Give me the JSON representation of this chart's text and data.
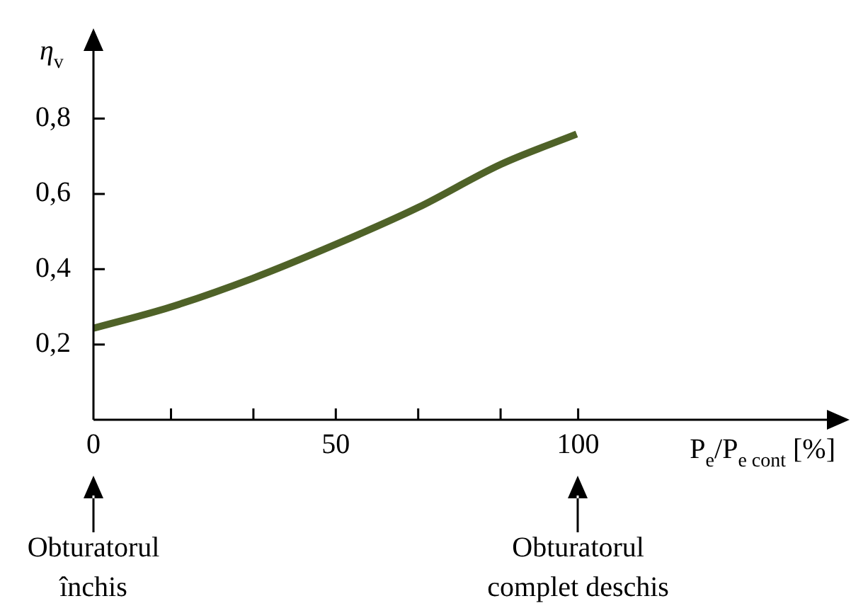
{
  "chart_data": {
    "type": "line",
    "xlabel": "P$_{e}$/P$_{e cont}$ [%]",
    "ylabel": "η$_{v}$",
    "x": [
      0,
      15.8,
      32.9,
      50,
      67,
      84.1,
      99.7
    ],
    "series": [
      {
        "color": "#4f6228",
        "values": [
          0.243,
          0.299,
          0.376,
          0.466,
          0.564,
          0.679,
          0.759
        ]
      }
    ],
    "xlim": [
      0,
      156
    ],
    "ylim": [
      0,
      1.04
    ],
    "xticks": [
      0,
      {
        "value": 16,
        "label": null
      },
      {
        "value": 33,
        "label": null
      },
      50,
      {
        "value": 67,
        "label": null
      },
      {
        "value": 84,
        "label": null
      },
      100
    ],
    "yticks": [
      {
        "value": 0.2,
        "label": "0,2"
      },
      {
        "value": 0.4,
        "label": "0,4"
      },
      {
        "value": 0.6,
        "label": "0,6"
      },
      {
        "value": 0.8,
        "label": "0,8"
      }
    ],
    "grid": false,
    "legend": false,
    "marker": "none",
    "line_style": "solid",
    "annotations": [
      "Obturatorul închis",
      "Obturatorul complet deschis"
    ]
  }
}
